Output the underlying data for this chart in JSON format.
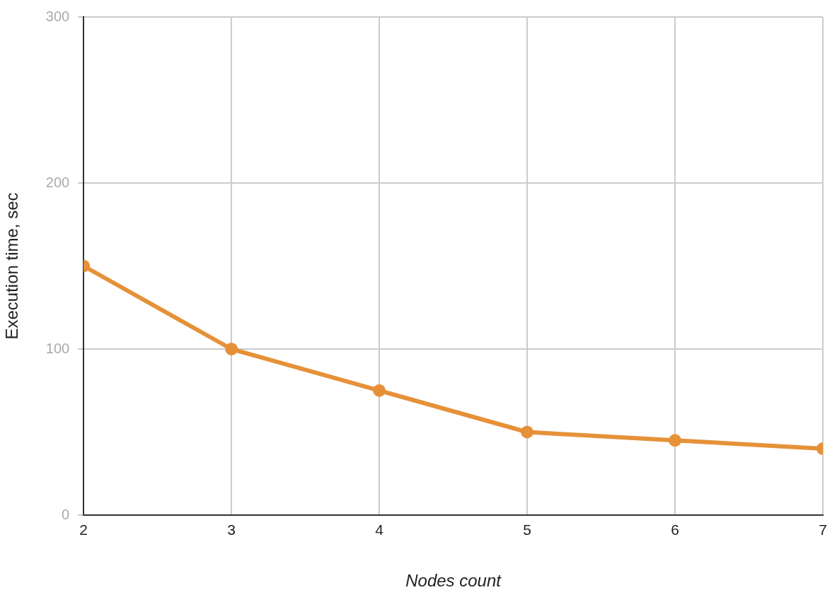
{
  "chart_data": {
    "type": "line",
    "xlabel": "Nodes count",
    "ylabel": "Execution time, sec",
    "x": [
      2,
      3,
      4,
      5,
      6,
      7
    ],
    "series": [
      {
        "color": "#e69138",
        "values": [
          150,
          100,
          75,
          50,
          45,
          40
        ]
      }
    ],
    "xlim": [
      2,
      7
    ],
    "ylim": [
      0,
      300
    ],
    "xticks": [
      2,
      3,
      4,
      5,
      6,
      7
    ],
    "yticks": [
      0,
      100,
      200,
      300
    ],
    "grid": true,
    "marker": "circle",
    "line_style": "solid"
  }
}
